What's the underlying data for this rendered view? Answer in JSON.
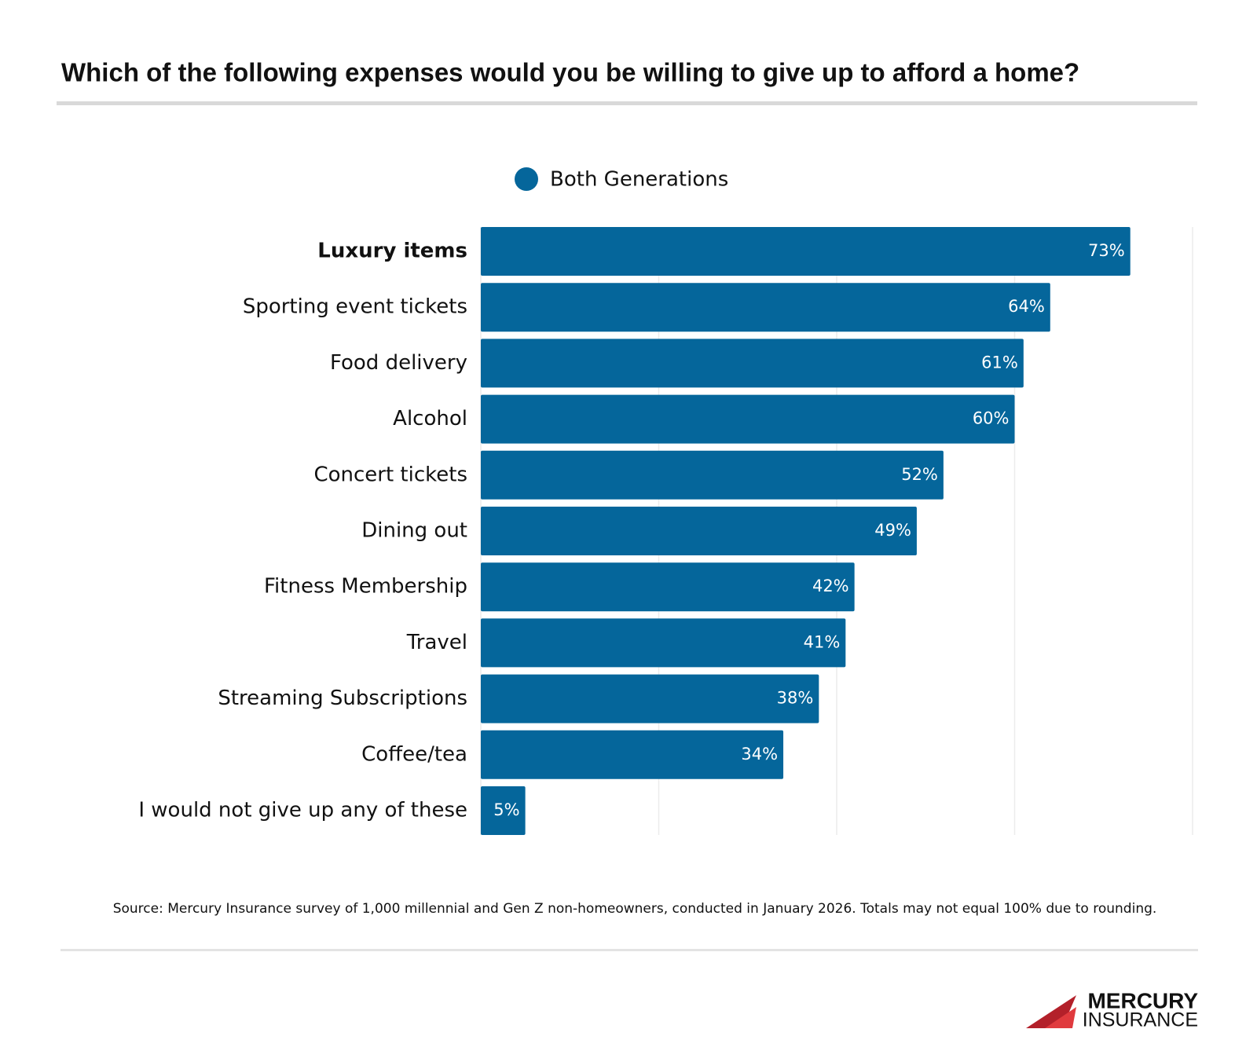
{
  "chart_data": {
    "type": "bar",
    "orientation": "horizontal",
    "title": "Which of the following expenses would you be willing to give up to afford a home?",
    "categories": [
      "Luxury items",
      "Sporting event tickets",
      "Food delivery",
      "Alcohol",
      "Concert tickets",
      "Dining out",
      "Fitness Membership",
      "Travel",
      "Streaming Subscriptions",
      "Coffee/tea",
      "I would not give up any of these"
    ],
    "series": [
      {
        "name": "Both Generations",
        "color": "#05669b",
        "values": [
          73,
          64,
          61,
          60,
          52,
          49,
          42,
          41,
          38,
          34,
          5
        ],
        "value_labels": [
          "73%",
          "64%",
          "61%",
          "60%",
          "52%",
          "49%",
          "42%",
          "41%",
          "38%",
          "34%",
          "5%"
        ]
      }
    ],
    "xlim": [
      0,
      80
    ],
    "xticks": [
      0,
      20,
      40,
      60,
      80
    ],
    "grid": true,
    "source": "Source: Mercury Insurance survey of 1,000 millennial and Gen Z non-homeowners, conducted in January 2026. Totals may not equal 100% due to rounding.",
    "logo": [
      "MERCURY",
      "INSURANCE"
    ]
  }
}
